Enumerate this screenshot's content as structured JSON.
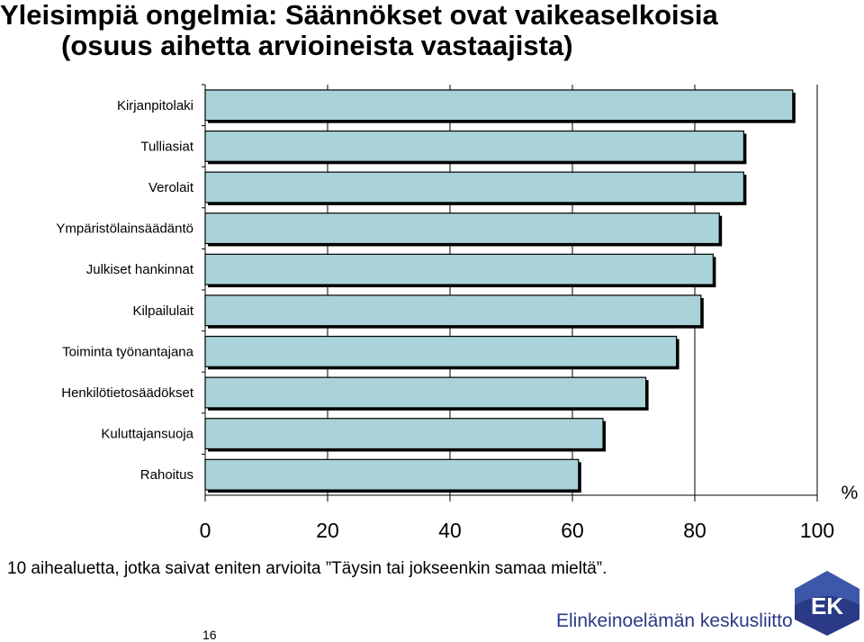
{
  "title": {
    "line1": "Yleisimpiä ongelmia: Säännökset ovat vaikeaselkoisia",
    "line2": "(osuus aihetta arvioineista vastaajista)"
  },
  "chart_data": {
    "type": "bar",
    "orientation": "horizontal",
    "categories": [
      "Kirjanpitolaki",
      "Tulliasiat",
      "Verolait",
      "Ympäristölainsäädäntö",
      "Julkiset hankinnat",
      "Kilpailulait",
      "Toiminta työnantajana",
      "Henkilötietosäädökset",
      "Kuluttajansuoja",
      "Rahoitus"
    ],
    "values": [
      96,
      88,
      88,
      84,
      83,
      81,
      77,
      72,
      65,
      61
    ],
    "xlim": [
      0,
      100
    ],
    "xticks": [
      "0",
      "20",
      "40",
      "60",
      "80",
      "100"
    ],
    "xlabel": "%",
    "bar_color": "#a9d3d8",
    "bar_edge_color": "#000000"
  },
  "footnote": "10 aihealuetta, jotka saivat eniten arvioita ”Täysin tai jokseenkin samaa mieltä”.",
  "page_number": "16",
  "brand": {
    "name": "Elinkeinoelämän keskusliitto",
    "logo_text": "EK",
    "color": "#2a3a86"
  }
}
